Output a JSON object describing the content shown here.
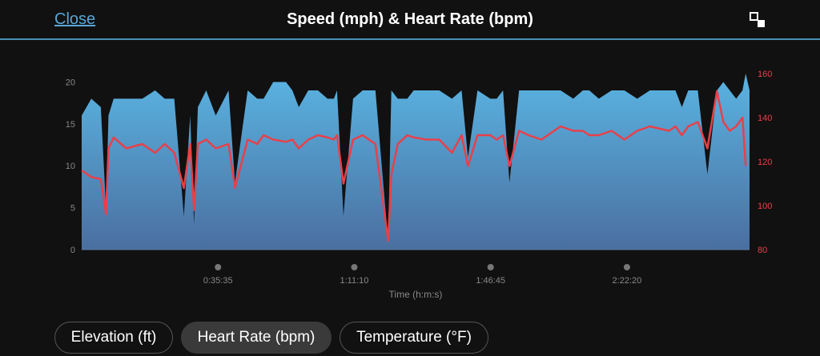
{
  "header": {
    "close_label": "Close",
    "title": "Speed (mph) & Heart Rate (bpm)",
    "expand_icon": "expand-collapse-icon"
  },
  "chips": [
    {
      "label": "Elevation (ft)",
      "active": false
    },
    {
      "label": "Heart Rate (bpm)",
      "active": true
    },
    {
      "label": "Temperature (°F)",
      "active": false
    }
  ],
  "colors": {
    "speed_top": "#5ab4e2",
    "speed_bottom": "#4a6fa0",
    "heart_rate": "#e8404a",
    "left_axis_text": "#888888",
    "right_axis_text": "#e8404a",
    "accent": "#4a90b8"
  },
  "chart_data": {
    "type": "area",
    "xlabel": "Time (h:m:s)",
    "x_ticks": [
      "0:35:35",
      "1:11:10",
      "1:46:45",
      "2:22:20"
    ],
    "x_tick_seconds": [
      2135,
      4270,
      6405,
      8540
    ],
    "xlim_seconds": [
      0,
      10460
    ],
    "y_left": {
      "label": "",
      "ticks": [
        0,
        5,
        10,
        15,
        20
      ],
      "lim": [
        0,
        21
      ]
    },
    "y_right": {
      "label": "",
      "ticks": [
        80,
        100,
        120,
        140,
        160
      ],
      "lim": [
        80,
        160
      ]
    },
    "series": [
      {
        "name": "Speed (mph)",
        "axis": "left",
        "kind": "area",
        "x_seconds": [
          0,
          150,
          300,
          380,
          420,
          500,
          700,
          950,
          1150,
          1300,
          1450,
          1600,
          1700,
          1760,
          1820,
          1950,
          2100,
          2300,
          2400,
          2600,
          2750,
          2850,
          3000,
          3200,
          3300,
          3400,
          3550,
          3700,
          3850,
          3950,
          4000,
          4100,
          4250,
          4400,
          4600,
          4800,
          4850,
          4950,
          5100,
          5200,
          5400,
          5600,
          5800,
          5950,
          6050,
          6200,
          6400,
          6500,
          6600,
          6700,
          6850,
          7000,
          7200,
          7400,
          7500,
          7700,
          7850,
          7950,
          8100,
          8300,
          8500,
          8700,
          8900,
          9200,
          9300,
          9400,
          9500,
          9650,
          9800,
          9950,
          10050,
          10150,
          10250,
          10350,
          10400,
          10460
        ],
        "values": [
          16,
          18,
          17,
          5,
          16,
          18,
          18,
          18,
          19,
          18,
          18,
          4,
          16,
          3,
          17,
          19,
          16,
          19,
          8,
          19,
          18,
          18,
          20,
          20,
          19,
          17,
          19,
          19,
          18,
          18,
          19,
          4,
          18,
          19,
          19,
          1,
          19,
          18,
          18,
          19,
          19,
          19,
          18,
          19,
          11,
          19,
          18,
          18,
          19,
          8,
          19,
          19,
          19,
          19,
          19,
          18,
          19,
          19,
          18,
          19,
          19,
          18,
          19,
          19,
          19,
          17,
          19,
          19,
          9,
          19,
          20,
          19,
          18,
          19,
          21,
          19
        ]
      },
      {
        "name": "Heart Rate (bpm)",
        "axis": "right",
        "kind": "line",
        "x_seconds": [
          0,
          150,
          300,
          380,
          420,
          500,
          700,
          950,
          1150,
          1300,
          1450,
          1600,
          1700,
          1760,
          1820,
          1950,
          2100,
          2300,
          2400,
          2600,
          2750,
          2850,
          3000,
          3200,
          3300,
          3400,
          3550,
          3700,
          3850,
          3950,
          4000,
          4100,
          4250,
          4400,
          4600,
          4800,
          4850,
          4950,
          5100,
          5200,
          5400,
          5600,
          5800,
          5950,
          6050,
          6200,
          6400,
          6500,
          6600,
          6700,
          6850,
          7000,
          7200,
          7400,
          7500,
          7700,
          7850,
          7950,
          8100,
          8300,
          8500,
          8700,
          8900,
          9200,
          9300,
          9400,
          9500,
          9650,
          9800,
          9950,
          10050,
          10150,
          10250,
          10350,
          10400
        ],
        "values": [
          116,
          113,
          112,
          96,
          126,
          131,
          126,
          128,
          124,
          128,
          124,
          108,
          128,
          98,
          128,
          130,
          126,
          128,
          108,
          130,
          128,
          132,
          130,
          129,
          130,
          126,
          130,
          132,
          131,
          130,
          132,
          110,
          130,
          132,
          128,
          84,
          114,
          128,
          132,
          131,
          130,
          130,
          124,
          132,
          118,
          132,
          132,
          130,
          132,
          118,
          134,
          132,
          130,
          134,
          136,
          134,
          134,
          132,
          132,
          134,
          130,
          134,
          136,
          134,
          136,
          132,
          136,
          138,
          126,
          152,
          138,
          134,
          136,
          140,
          118
        ]
      }
    ]
  }
}
